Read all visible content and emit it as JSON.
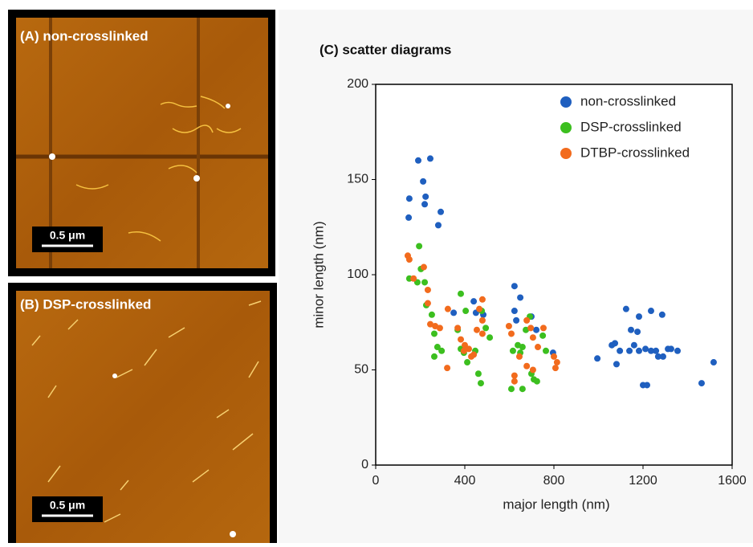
{
  "panels": [
    {
      "label": "(A) non-crosslinked",
      "scale_bar": "0.5 μm"
    },
    {
      "label": "(B) DSP-crosslinked",
      "scale_bar": "0.5 μm"
    }
  ],
  "chart_data": {
    "type": "scatter",
    "title": "(C) scatter diagrams",
    "x_label": "major length (nm)",
    "y_label": "minor length (nm)",
    "xlim": [
      0,
      1600
    ],
    "ylim": [
      0,
      200
    ],
    "xticks": [
      0,
      400,
      800,
      1200,
      1600
    ],
    "yticks": [
      0,
      50,
      100,
      150,
      200
    ],
    "grid": false,
    "legend": "upper-right",
    "series": [
      {
        "name": "non-crosslinked",
        "color": "#1f5fbf",
        "x": [
          191,
          245,
          213,
          224,
          151,
          220,
          292,
          148,
          281,
          350,
          440,
          450,
          483,
          623,
          649,
          623,
          631,
          699,
          721,
          796,
          995,
          1060,
          1074,
          1081,
          1096,
          1124,
          1139,
          1146,
          1160,
          1175,
          1182,
          1182,
          1200,
          1218,
          1211,
          1236,
          1236,
          1258,
          1268,
          1286,
          1290,
          1312,
          1326,
          1355,
          1463,
          1517
        ],
        "values": [
          160,
          161,
          149,
          141,
          140,
          137,
          133,
          130,
          126,
          80,
          86,
          80,
          79,
          94,
          88,
          81,
          76,
          78,
          71,
          59,
          56,
          63,
          64,
          53,
          60,
          82,
          60,
          71,
          63,
          70,
          78,
          60,
          42,
          42,
          61,
          81,
          60,
          60,
          57,
          79,
          57,
          61,
          61,
          60,
          43,
          54
        ]
      },
      {
        "name": "DSP-crosslinked",
        "color": "#3cbf1f",
        "x": [
          195,
          203,
          151,
          187,
          220,
          227,
          252,
          263,
          277,
          263,
          296,
          382,
          404,
          368,
          382,
          396,
          411,
          447,
          461,
          472,
          512,
          494,
          476,
          609,
          659,
          616,
          649,
          659,
          674,
          692,
          699,
          724,
          710,
          750,
          764,
          638
        ],
        "values": [
          115,
          103,
          98,
          96,
          96,
          84,
          79,
          69,
          62,
          57,
          60,
          90,
          81,
          71,
          61,
          59,
          54,
          60,
          48,
          43,
          67,
          72,
          81,
          40,
          40,
          60,
          59,
          62,
          71,
          78,
          48,
          44,
          45,
          68,
          60,
          63
        ]
      },
      {
        "name": "DTBP-crosslinked",
        "color": "#f26b1d",
        "x": [
          144,
          151,
          170,
          216,
          234,
          234,
          245,
          267,
          288,
          321,
          324,
          368,
          382,
          396,
          400,
          418,
          440,
          465,
          479,
          479,
          479,
          454,
          429,
          598,
          609,
          623,
          623,
          645,
          678,
          696,
          706,
          728,
          753,
          800,
          814,
          807,
          678,
          706
        ],
        "values": [
          110,
          108,
          98,
          104,
          92,
          85,
          74,
          73,
          72,
          51,
          82,
          72,
          66,
          60,
          63,
          61,
          58,
          82,
          87,
          76,
          69,
          71,
          57,
          73,
          69,
          47,
          44,
          57,
          76,
          72,
          67,
          62,
          72,
          57,
          54,
          51,
          52,
          50
        ]
      }
    ]
  }
}
